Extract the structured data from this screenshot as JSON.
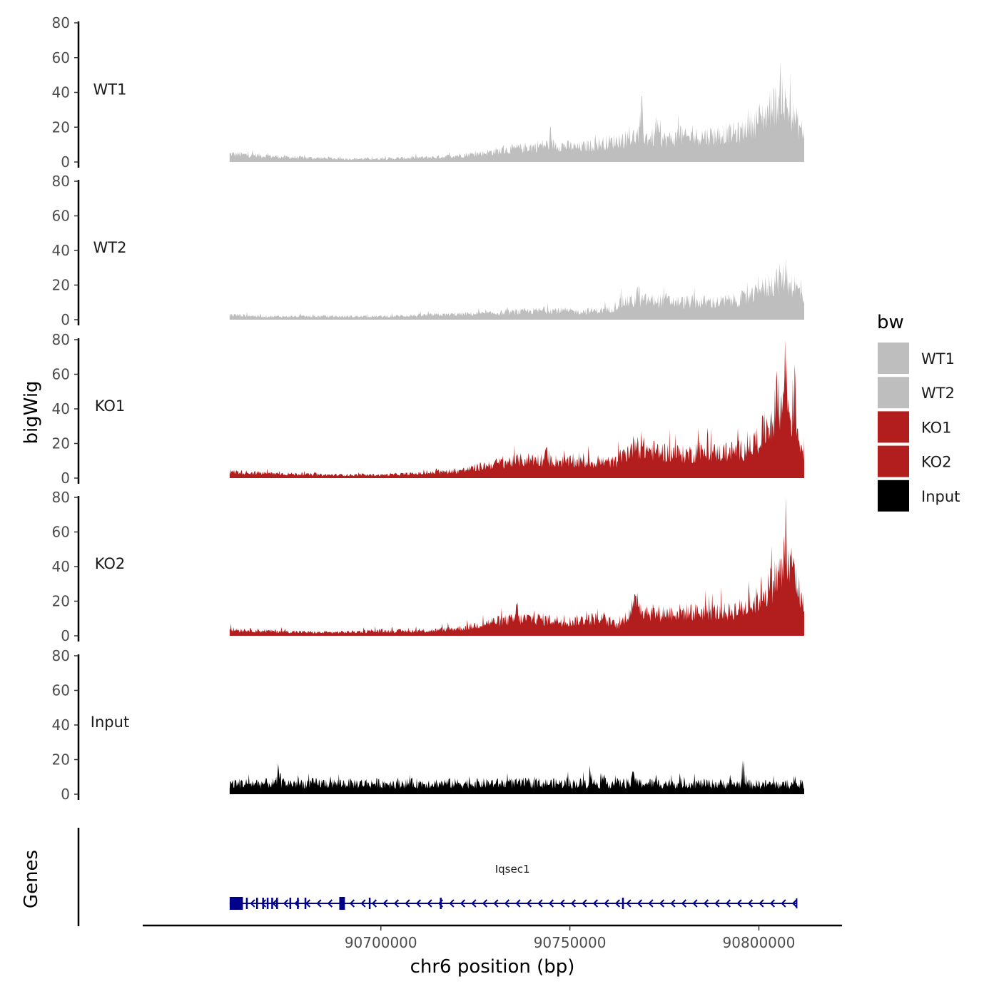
{
  "chart_data": {
    "type": "area",
    "xlabel": "chr6 position (bp)",
    "ylabel": "bigWig",
    "genes_label": "Genes",
    "xlim": [
      90637000,
      90822000
    ],
    "data_range": [
      90660000,
      90812000
    ],
    "ylim": [
      0,
      80
    ],
    "y_ticks": [
      "0",
      "20",
      "40",
      "60",
      "80"
    ],
    "x_ticks": [
      {
        "value": 90700000,
        "label": "90700000"
      },
      {
        "value": 90750000,
        "label": "90750000"
      },
      {
        "value": 90800000,
        "label": "90800000"
      }
    ],
    "colors": {
      "wt": "#bebebe",
      "ko": "#b21e1e",
      "input": "#000000",
      "gene": "#00008b"
    },
    "series": [
      {
        "name": "WT1",
        "color": "#bebebe",
        "profile": [
          [
            90660000,
            5
          ],
          [
            90675000,
            3
          ],
          [
            90690000,
            2
          ],
          [
            90700000,
            2
          ],
          [
            90715000,
            3
          ],
          [
            90725000,
            5
          ],
          [
            90735000,
            8
          ],
          [
            90745000,
            11
          ],
          [
            90752000,
            9
          ],
          [
            90760000,
            12
          ],
          [
            90768000,
            16
          ],
          [
            90775000,
            14
          ],
          [
            90785000,
            16
          ],
          [
            90795000,
            18
          ],
          [
            90802000,
            30
          ],
          [
            90806000,
            38
          ],
          [
            90808000,
            32
          ],
          [
            90812000,
            17
          ]
        ],
        "peaks": [
          [
            90769000,
            30
          ],
          [
            90773000,
            24
          ],
          [
            90779000,
            21
          ],
          [
            90797000,
            25
          ],
          [
            90806000,
            48
          ],
          [
            90803500,
            40
          ]
        ]
      },
      {
        "name": "WT2",
        "color": "#bebebe",
        "profile": [
          [
            90660000,
            3
          ],
          [
            90670000,
            2
          ],
          [
            90685000,
            2
          ],
          [
            90700000,
            2
          ],
          [
            90715000,
            3
          ],
          [
            90730000,
            4
          ],
          [
            90745000,
            6
          ],
          [
            90752000,
            5
          ],
          [
            90760000,
            6
          ],
          [
            90764000,
            11
          ],
          [
            90770000,
            12
          ],
          [
            90780000,
            11
          ],
          [
            90790000,
            11
          ],
          [
            90798000,
            14
          ],
          [
            90803000,
            22
          ],
          [
            90806000,
            26
          ],
          [
            90809000,
            22
          ],
          [
            90812000,
            14
          ]
        ],
        "peaks": [
          [
            90768000,
            18
          ],
          [
            90775000,
            16
          ],
          [
            90800000,
            25
          ],
          [
            90807000,
            31
          ]
        ]
      },
      {
        "name": "KO1",
        "color": "#b21e1e",
        "profile": [
          [
            90660000,
            4
          ],
          [
            90670000,
            3
          ],
          [
            90685000,
            2
          ],
          [
            90700000,
            2
          ],
          [
            90712000,
            3
          ],
          [
            90722000,
            5
          ],
          [
            90730000,
            9
          ],
          [
            90740000,
            12
          ],
          [
            90750000,
            10
          ],
          [
            90758000,
            10
          ],
          [
            90762000,
            10
          ],
          [
            90767000,
            20
          ],
          [
            90772000,
            17
          ],
          [
            90780000,
            15
          ],
          [
            90790000,
            16
          ],
          [
            90797000,
            18
          ],
          [
            90801000,
            28
          ],
          [
            90804000,
            40
          ],
          [
            90807000,
            45
          ],
          [
            90809000,
            38
          ],
          [
            90812000,
            15
          ]
        ],
        "peaks": [
          [
            90767500,
            27
          ],
          [
            90744000,
            16
          ],
          [
            90784000,
            25
          ],
          [
            90805000,
            60
          ],
          [
            90807000,
            78
          ],
          [
            90809500,
            52
          ]
        ]
      },
      {
        "name": "KO2",
        "color": "#b21e1e",
        "profile": [
          [
            90660000,
            4
          ],
          [
            90670000,
            3
          ],
          [
            90685000,
            2
          ],
          [
            90700000,
            3
          ],
          [
            90712000,
            3
          ],
          [
            90722000,
            5
          ],
          [
            90730000,
            9
          ],
          [
            90740000,
            11
          ],
          [
            90750000,
            9
          ],
          [
            90758000,
            11
          ],
          [
            90763000,
            6
          ],
          [
            90767000,
            19
          ],
          [
            90772000,
            14
          ],
          [
            90782000,
            15
          ],
          [
            90792000,
            15
          ],
          [
            90798000,
            19
          ],
          [
            90802000,
            28
          ],
          [
            90805000,
            38
          ],
          [
            90808000,
            42
          ],
          [
            90810000,
            34
          ],
          [
            90812000,
            16
          ]
        ],
        "peaks": [
          [
            90768000,
            26
          ],
          [
            90736000,
            17
          ],
          [
            90801000,
            30
          ],
          [
            90807000,
            58
          ],
          [
            90809000,
            47
          ]
        ]
      },
      {
        "name": "Input",
        "color": "#000000",
        "profile": [
          [
            90660000,
            7
          ],
          [
            90700000,
            7
          ],
          [
            90750000,
            7
          ],
          [
            90780000,
            7
          ],
          [
            90812000,
            6
          ]
        ],
        "peaks": [
          [
            90755500,
            15
          ],
          [
            90767000,
            14
          ],
          [
            90796000,
            15
          ],
          [
            90673000,
            14
          ]
        ]
      }
    ],
    "gene": {
      "name": "Iqsec1",
      "strand": "-",
      "start": 90660000,
      "end": 90810000,
      "big_exons": [
        [
          90660000,
          90663500
        ],
        [
          90689000,
          90690500
        ]
      ],
      "small_exons": [
        90664500,
        90667200,
        90668800,
        90670000,
        90671200,
        90672500,
        90676000,
        90678000,
        90680000,
        90697000,
        90715800,
        90764000
      ]
    },
    "legend": {
      "title": "bw",
      "items": [
        {
          "label": "WT1",
          "color": "#bebebe"
        },
        {
          "label": "WT2",
          "color": "#bebebe"
        },
        {
          "label": "KO1",
          "color": "#b21e1e"
        },
        {
          "label": "KO2",
          "color": "#b21e1e"
        },
        {
          "label": "Input",
          "color": "#000000"
        }
      ]
    }
  }
}
